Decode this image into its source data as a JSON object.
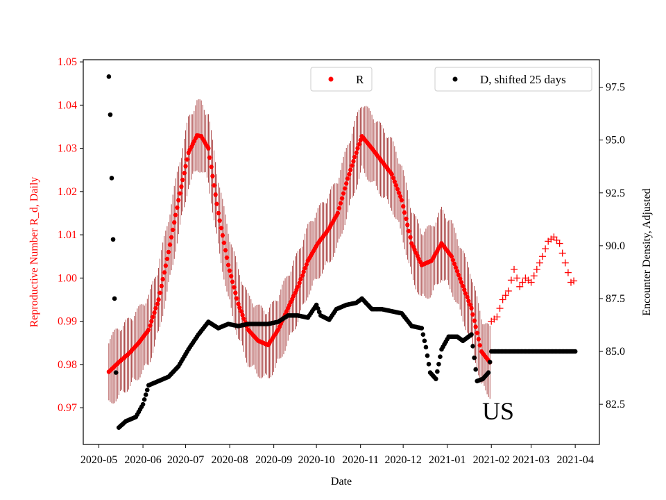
{
  "chart_data": {
    "type": "scatter",
    "x_axis": {
      "label": "Date",
      "ticks": [
        "2020-05",
        "2020-06",
        "2020-07",
        "2020-08",
        "2020-09",
        "2020-10",
        "2020-11",
        "2020-12",
        "2021-01",
        "2021-02",
        "2021-03",
        "2021-04"
      ],
      "range": [
        "2020-04-20",
        "2021-04-18"
      ]
    },
    "y_left": {
      "label": "Reproductive Number R_d, Daily",
      "color": "#ff0000",
      "range": [
        0.9615,
        1.0505
      ],
      "ticks": [
        "0.97",
        "0.98",
        "0.99",
        "1.00",
        "1.01",
        "1.02",
        "1.03",
        "1.04",
        "1.05"
      ]
    },
    "y_right": {
      "label": "Encounter Density, Adjusted",
      "range": [
        80.6,
        98.8
      ],
      "ticks": [
        "82.5",
        "85.0",
        "87.5",
        "90.0",
        "92.5",
        "95.0",
        "97.5"
      ]
    },
    "annotation": "US",
    "grid": false,
    "legends": [
      {
        "label": "R",
        "color": "#ff0000",
        "position": "upper-center"
      },
      {
        "label": "D, shifted 25 days",
        "color": "#000000",
        "position": "upper-right"
      }
    ],
    "series": [
      {
        "name": "R",
        "axis": "left",
        "color": "#ff0000",
        "error_color": "#8b0000",
        "marker": "circle",
        "points": [
          [
            "2020-05-08",
            0.9783
          ],
          [
            "2020-05-15",
            0.9805
          ],
          [
            "2020-05-22",
            0.9825
          ],
          [
            "2020-05-29",
            0.985
          ],
          [
            "2020-06-05",
            0.988
          ],
          [
            "2020-06-12",
            0.995
          ],
          [
            "2020-06-19",
            1.006
          ],
          [
            "2020-06-26",
            1.018
          ],
          [
            "2020-07-03",
            1.029
          ],
          [
            "2020-07-09",
            1.033
          ],
          [
            "2020-07-12",
            1.0328
          ],
          [
            "2020-07-17",
            1.03
          ],
          [
            "2020-07-24",
            1.015
          ],
          [
            "2020-07-31",
            1.003
          ],
          [
            "2020-08-07",
            0.994
          ],
          [
            "2020-08-14",
            0.988
          ],
          [
            "2020-08-21",
            0.9855
          ],
          [
            "2020-08-28",
            0.9845
          ],
          [
            "2020-09-04",
            0.988
          ],
          [
            "2020-09-11",
            0.993
          ],
          [
            "2020-09-18",
            0.998
          ],
          [
            "2020-09-25",
            1.004
          ],
          [
            "2020-10-02",
            1.008
          ],
          [
            "2020-10-09",
            1.011
          ],
          [
            "2020-10-16",
            1.015
          ],
          [
            "2020-10-23",
            1.023
          ],
          [
            "2020-10-30",
            1.03
          ],
          [
            "2020-11-02",
            1.0328
          ],
          [
            "2020-11-09",
            1.03
          ],
          [
            "2020-11-16",
            1.027
          ],
          [
            "2020-11-23",
            1.024
          ],
          [
            "2020-11-30",
            1.018
          ],
          [
            "2020-12-07",
            1.008
          ],
          [
            "2020-12-14",
            1.003
          ],
          [
            "2020-12-21",
            1.004
          ],
          [
            "2020-12-28",
            1.008
          ],
          [
            "2021-01-04",
            1.005
          ],
          [
            "2021-01-11",
            0.999
          ],
          [
            "2021-01-18",
            0.993
          ],
          [
            "2021-01-25",
            0.983
          ],
          [
            "2021-01-31",
            0.9805
          ]
        ],
        "error_halfwidth": 0.0085
      },
      {
        "name": "R (extrapolated)",
        "axis": "left",
        "color": "#ff0000",
        "marker": "plus",
        "points": [
          [
            "2021-02-01",
            0.99
          ],
          [
            "2021-02-05",
            0.991
          ],
          [
            "2021-02-09",
            0.995
          ],
          [
            "2021-02-13",
            0.997
          ],
          [
            "2021-02-17",
            1.002
          ],
          [
            "2021-02-21",
            0.998
          ],
          [
            "2021-02-25",
            1.0
          ],
          [
            "2021-03-01",
            0.999
          ],
          [
            "2021-03-05",
            1.002
          ],
          [
            "2021-03-09",
            1.005
          ],
          [
            "2021-03-13",
            1.0085
          ],
          [
            "2021-03-17",
            1.0095
          ],
          [
            "2021-03-21",
            1.008
          ],
          [
            "2021-03-25",
            1.0035
          ],
          [
            "2021-03-29",
            0.999
          ],
          [
            "2021-04-01",
            0.9995
          ]
        ]
      },
      {
        "name": "D, shifted 25 days",
        "axis": "right",
        "color": "#000000",
        "marker": "circle",
        "points": [
          [
            "2020-05-08",
            98.0
          ],
          [
            "2020-05-09",
            96.2
          ],
          [
            "2020-05-10",
            93.2
          ],
          [
            "2020-05-11",
            90.3
          ],
          [
            "2020-05-12",
            87.5
          ],
          [
            "2020-05-13",
            84.0
          ],
          [
            "2020-05-15",
            81.4
          ],
          [
            "2020-05-20",
            81.7
          ],
          [
            "2020-05-27",
            81.9
          ],
          [
            "2020-06-01",
            82.5
          ],
          [
            "2020-06-05",
            83.4
          ],
          [
            "2020-06-12",
            83.6
          ],
          [
            "2020-06-19",
            83.8
          ],
          [
            "2020-06-26",
            84.3
          ],
          [
            "2020-07-03",
            85.1
          ],
          [
            "2020-07-10",
            85.8
          ],
          [
            "2020-07-17",
            86.4
          ],
          [
            "2020-07-24",
            86.1
          ],
          [
            "2020-07-31",
            86.3
          ],
          [
            "2020-08-07",
            86.2
          ],
          [
            "2020-08-14",
            86.3
          ],
          [
            "2020-08-21",
            86.3
          ],
          [
            "2020-08-28",
            86.3
          ],
          [
            "2020-09-04",
            86.4
          ],
          [
            "2020-09-11",
            86.7
          ],
          [
            "2020-09-18",
            86.7
          ],
          [
            "2020-09-25",
            86.6
          ],
          [
            "2020-10-01",
            87.2
          ],
          [
            "2020-10-04",
            86.7
          ],
          [
            "2020-10-10",
            86.5
          ],
          [
            "2020-10-15",
            87.0
          ],
          [
            "2020-10-22",
            87.2
          ],
          [
            "2020-10-29",
            87.3
          ],
          [
            "2020-11-02",
            87.5
          ],
          [
            "2020-11-09",
            87.0
          ],
          [
            "2020-11-16",
            87.0
          ],
          [
            "2020-11-23",
            86.9
          ],
          [
            "2020-11-30",
            86.8
          ],
          [
            "2020-12-07",
            86.2
          ],
          [
            "2020-12-14",
            86.1
          ],
          [
            "2020-12-17",
            85.2
          ],
          [
            "2020-12-20",
            84.0
          ],
          [
            "2020-12-24",
            83.7
          ],
          [
            "2020-12-28",
            85.1
          ],
          [
            "2021-01-02",
            85.7
          ],
          [
            "2021-01-08",
            85.7
          ],
          [
            "2021-01-12",
            85.5
          ],
          [
            "2021-01-18",
            85.8
          ],
          [
            "2021-01-22",
            83.6
          ],
          [
            "2021-01-26",
            83.7
          ],
          [
            "2021-01-30",
            84.0
          ],
          [
            "2021-02-01",
            85.0
          ],
          [
            "2021-02-15",
            85.0
          ],
          [
            "2021-03-01",
            85.0
          ],
          [
            "2021-03-15",
            85.0
          ],
          [
            "2021-04-01",
            85.0
          ]
        ]
      }
    ]
  }
}
